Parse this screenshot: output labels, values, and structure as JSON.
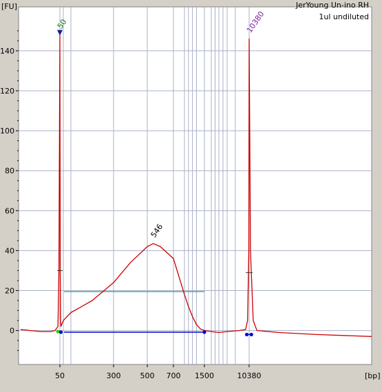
{
  "header": {
    "y_unit": "[FU]",
    "x_unit": "[bp]",
    "sample_title": "JerYoung Un-ino RH",
    "sample_subtitle": "1ul undiluted"
  },
  "chart_data": {
    "type": "line",
    "title": "JerYoung Un-ino RH",
    "subtitle": "1ul undiluted",
    "xlabel": "[bp]",
    "ylabel": "[FU]",
    "ylim": [
      -17,
      162
    ],
    "y_ticks": [
      0,
      20,
      40,
      60,
      80,
      100,
      120,
      140
    ],
    "x_ticks": [
      "50",
      "300",
      "500",
      "700",
      "1500",
      "10380"
    ],
    "x_scale": "sizing ladder (non-linear)",
    "grid": true,
    "colors": {
      "trace": "#cc0000",
      "grid": "#a9b0c8",
      "baseline": "#0000cc",
      "region": "#339999",
      "lower_marker": "#117711",
      "upper_marker": "#7a1fa2",
      "plot_bg": "#ffffff",
      "panel_bg": "#d4d0c8"
    },
    "peak_labels": [
      {
        "label": "50",
        "x_bp": 50,
        "fu": 148,
        "role": "lower marker"
      },
      {
        "label": "546",
        "x_bp": 546,
        "fu": 43.5,
        "role": "smear peak"
      },
      {
        "label": "10380",
        "x_bp": 10380,
        "fu": 146,
        "role": "upper marker"
      }
    ],
    "region": {
      "from_bp": 50,
      "to_bp": 1500,
      "fu_level": 19.5
    },
    "series": [
      {
        "values_note": "electropherogram trace; x in bp, y in FU",
        "points": [
          [
            10,
            0.5
          ],
          [
            20,
            0.0
          ],
          [
            30,
            -0.5
          ],
          [
            40,
            -0.5
          ],
          [
            45,
            0.0
          ],
          [
            48,
            2.0
          ],
          [
            49,
            30.0
          ],
          [
            50,
            148.0
          ],
          [
            51,
            30.0
          ],
          [
            52,
            5.0
          ],
          [
            53,
            2.0
          ],
          [
            60,
            5.0
          ],
          [
            100,
            9.0
          ],
          [
            150,
            12.0
          ],
          [
            200,
            15.0
          ],
          [
            300,
            24.0
          ],
          [
            400,
            34.0
          ],
          [
            500,
            42.0
          ],
          [
            546,
            43.5
          ],
          [
            600,
            42.0
          ],
          [
            700,
            36.0
          ],
          [
            800,
            30.0
          ],
          [
            900,
            24.0
          ],
          [
            1000,
            18.0
          ],
          [
            1100,
            12.0
          ],
          [
            1200,
            7.0
          ],
          [
            1300,
            3.0
          ],
          [
            1400,
            0.8
          ],
          [
            1500,
            0.0
          ],
          [
            2000,
            -0.5
          ],
          [
            3000,
            -1.0
          ],
          [
            5000,
            -0.5
          ],
          [
            8000,
            0.0
          ],
          [
            9500,
            0.5
          ],
          [
            10000,
            5.0
          ],
          [
            10300,
            40.0
          ],
          [
            10380,
            146.0
          ],
          [
            10450,
            40.0
          ],
          [
            10600,
            5.0
          ],
          [
            10800,
            0.0
          ],
          [
            12000,
            -1.0
          ],
          [
            14000,
            -2.0
          ],
          [
            17000,
            -3.0
          ]
        ]
      }
    ]
  }
}
